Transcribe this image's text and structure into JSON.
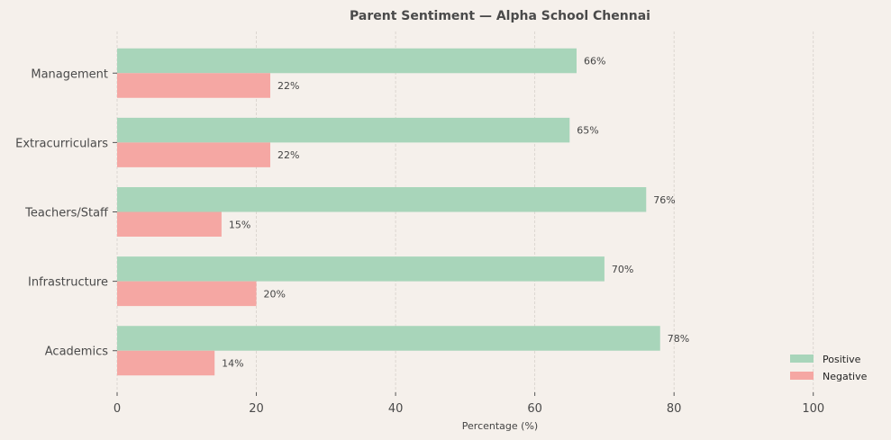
{
  "chart_data": {
    "type": "bar",
    "orientation": "horizontal",
    "title": "Parent Sentiment — Alpha School Chennai",
    "xlabel": "Percentage (%)",
    "ylabel": "",
    "xlim": [
      0,
      110
    ],
    "xticks": [
      0,
      20,
      40,
      60,
      80,
      100
    ],
    "grid": "vertical dashed",
    "legend_position": "lower-right",
    "categories": [
      "Academics",
      "Infrastructure",
      "Teachers/Staff",
      "Extracurriculars",
      "Management"
    ],
    "series": [
      {
        "name": "Positive",
        "color": "#a8d5ba",
        "values": [
          78,
          70,
          76,
          65,
          66
        ]
      },
      {
        "name": "Negative",
        "color": "#f5a7a3",
        "values": [
          14,
          20,
          15,
          22,
          22
        ]
      }
    ],
    "label_suffix": "%"
  }
}
